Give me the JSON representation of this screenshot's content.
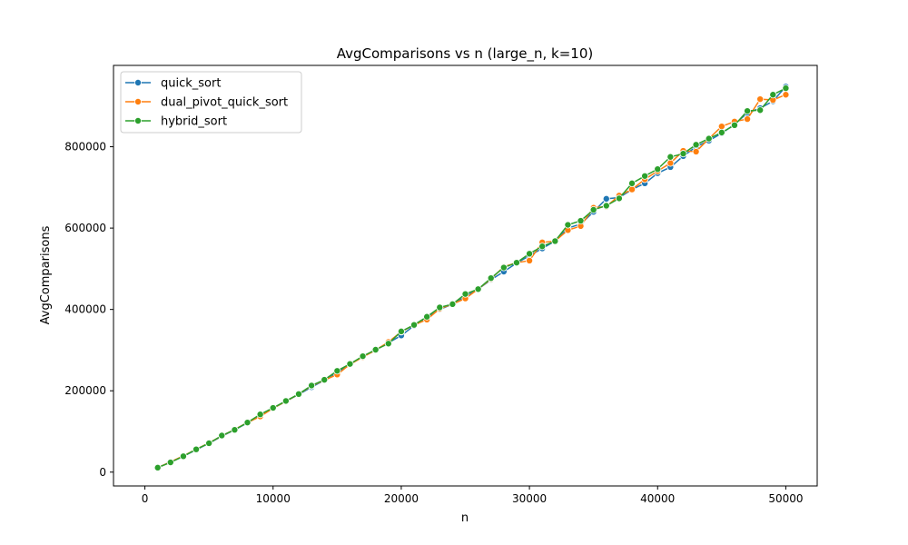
{
  "chart_data": {
    "type": "line",
    "title": "AvgComparisons vs n (large_n, k=10)",
    "xlabel": "n",
    "ylabel": "AvgComparisons",
    "xlim": [
      -2450,
      52450
    ],
    "ylim": [
      -34000,
      1000000
    ],
    "xticks": [
      0,
      10000,
      20000,
      30000,
      40000,
      50000
    ],
    "xtick_labels": [
      "0",
      "10000",
      "20000",
      "30000",
      "40000",
      "50000"
    ],
    "yticks": [
      0,
      200000,
      400000,
      600000,
      800000
    ],
    "ytick_labels": [
      "0",
      "200000",
      "400000",
      "600000",
      "800000"
    ],
    "grid": false,
    "legend_position": "top-left",
    "x": [
      1000,
      2000,
      3000,
      4000,
      5000,
      6000,
      7000,
      8000,
      9000,
      10000,
      11000,
      12000,
      13000,
      14000,
      15000,
      16000,
      17000,
      18000,
      19000,
      20000,
      21000,
      22000,
      23000,
      24000,
      25000,
      26000,
      27000,
      28000,
      29000,
      30000,
      31000,
      32000,
      33000,
      34000,
      35000,
      36000,
      37000,
      38000,
      39000,
      40000,
      41000,
      42000,
      43000,
      44000,
      45000,
      46000,
      47000,
      48000,
      49000,
      50000
    ],
    "series": [
      {
        "name": "quick_sort",
        "color": "#1f77b4",
        "values": [
          11000,
          25000,
          39000,
          55000,
          71000,
          88000,
          104000,
          121000,
          139000,
          157000,
          174000,
          191000,
          209000,
          226000,
          245000,
          265000,
          284000,
          300000,
          318000,
          336000,
          360000,
          380000,
          400000,
          413000,
          432000,
          450000,
          473000,
          493000,
          514000,
          532000,
          550000,
          568000,
          600000,
          610000,
          640000,
          672000,
          675000,
          695000,
          710000,
          735000,
          750000,
          777000,
          800000,
          815000,
          833000,
          855000,
          883000,
          895000,
          912000,
          948000
        ]
      },
      {
        "name": "dual_pivot_quick_sort",
        "color": "#ff7f0e",
        "values": [
          11000,
          25000,
          40000,
          56000,
          72000,
          89000,
          105000,
          122000,
          137000,
          157000,
          174000,
          192000,
          212000,
          226000,
          240000,
          265000,
          283000,
          300000,
          320000,
          345000,
          362000,
          375000,
          402000,
          413000,
          427000,
          450000,
          475000,
          505000,
          515000,
          520000,
          565000,
          568000,
          595000,
          605000,
          650000,
          653000,
          680000,
          695000,
          720000,
          740000,
          760000,
          790000,
          788000,
          820000,
          850000,
          862000,
          868000,
          917000,
          915000,
          928000
        ]
      },
      {
        "name": "hybrid_sort",
        "color": "#2ca02c",
        "values": [
          11000,
          24000,
          39000,
          56000,
          71000,
          90000,
          104000,
          122000,
          142000,
          158000,
          175000,
          192000,
          213000,
          227000,
          249000,
          266000,
          285000,
          301000,
          316000,
          346000,
          362000,
          382000,
          405000,
          413000,
          438000,
          450000,
          477000,
          503000,
          515000,
          537000,
          555000,
          568000,
          608000,
          618000,
          645000,
          655000,
          673000,
          710000,
          728000,
          745000,
          775000,
          783000,
          805000,
          820000,
          835000,
          853000,
          888000,
          890000,
          928000,
          944000
        ]
      }
    ]
  }
}
